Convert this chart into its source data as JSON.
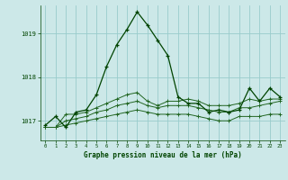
{
  "background_color": "#cce8e8",
  "grid_color": "#99cccc",
  "line_color_main": "#004400",
  "line_color_secondary": "#226622",
  "xlabel": "Graphe pression niveau de la mer (hPa)",
  "x_ticks": [
    0,
    1,
    2,
    3,
    4,
    5,
    6,
    7,
    8,
    9,
    10,
    11,
    12,
    13,
    14,
    15,
    16,
    17,
    18,
    19,
    20,
    21,
    22,
    23
  ],
  "y_ticks": [
    1017,
    1018,
    1019
  ],
  "ylim": [
    1016.55,
    1019.65
  ],
  "xlim": [
    -0.5,
    23.5
  ],
  "series1": [
    1016.9,
    1017.1,
    1016.85,
    1017.2,
    1017.25,
    1017.6,
    1018.25,
    1018.75,
    1019.1,
    1019.5,
    1019.2,
    1018.85,
    1018.5,
    1017.55,
    1017.4,
    1017.4,
    1017.2,
    1017.25,
    1017.2,
    1017.25,
    1017.75,
    1017.45,
    1017.75,
    1017.55
  ],
  "series2": [
    1016.85,
    1016.85,
    1017.15,
    1017.15,
    1017.2,
    1017.3,
    1017.4,
    1017.5,
    1017.6,
    1017.65,
    1017.45,
    1017.35,
    1017.45,
    1017.45,
    1017.5,
    1017.45,
    1017.35,
    1017.35,
    1017.35,
    1017.4,
    1017.5,
    1017.45,
    1017.5,
    1017.5
  ],
  "series3": [
    1016.85,
    1016.85,
    1017.0,
    1017.05,
    1017.1,
    1017.2,
    1017.25,
    1017.35,
    1017.4,
    1017.45,
    1017.35,
    1017.3,
    1017.35,
    1017.35,
    1017.35,
    1017.3,
    1017.25,
    1017.2,
    1017.2,
    1017.3,
    1017.3,
    1017.35,
    1017.4,
    1017.45
  ],
  "series4": [
    1016.85,
    1016.85,
    1016.9,
    1016.95,
    1017.0,
    1017.05,
    1017.1,
    1017.15,
    1017.2,
    1017.25,
    1017.2,
    1017.15,
    1017.15,
    1017.15,
    1017.15,
    1017.1,
    1017.05,
    1017.0,
    1017.0,
    1017.1,
    1017.1,
    1017.1,
    1017.15,
    1017.15
  ]
}
